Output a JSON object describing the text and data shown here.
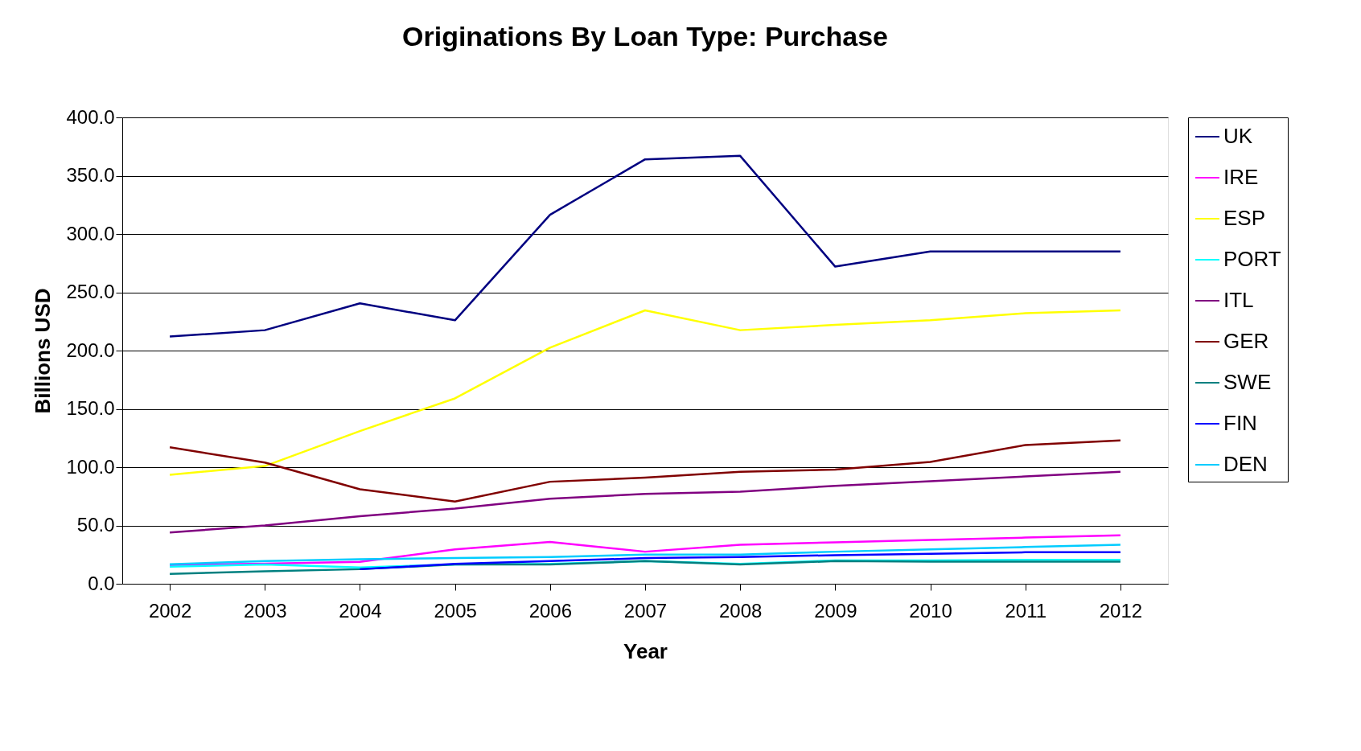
{
  "chart_data": {
    "type": "line",
    "title": "Originations By Loan Type: Purchase",
    "xlabel": "Year",
    "ylabel": "Billions USD",
    "categories": [
      "2002",
      "2003",
      "2004",
      "2005",
      "2006",
      "2007",
      "2008",
      "2009",
      "2010",
      "2011",
      "2012"
    ],
    "ylim": [
      0,
      400
    ],
    "yticks": [
      {
        "value": 0,
        "label": "0.0"
      },
      {
        "value": 50,
        "label": "50.0"
      },
      {
        "value": 100,
        "label": "100.0"
      },
      {
        "value": 150,
        "label": "150.0"
      },
      {
        "value": 200,
        "label": "200.0"
      },
      {
        "value": 250,
        "label": "250.0"
      },
      {
        "value": 300,
        "label": "300.0"
      },
      {
        "value": 350,
        "label": "350.0"
      },
      {
        "value": 400,
        "label": "400.0"
      }
    ],
    "grid": "y",
    "legend": "right",
    "marker": "none",
    "line_style": "solid",
    "series": [
      {
        "name": "UK",
        "color": "#000080",
        "values": [
          212,
          217.5,
          240.5,
          226,
          316.5,
          364,
          367,
          272,
          285,
          285,
          285
        ]
      },
      {
        "name": "IRE",
        "color": "#ff00ff",
        "values": [
          16,
          17.3,
          18.8,
          29.5,
          35.8,
          27.5,
          33.5,
          35.5,
          37.6,
          39.6,
          41.6
        ]
      },
      {
        "name": "ESP",
        "color": "#ffff00",
        "values": [
          93.5,
          101,
          131,
          159,
          202.5,
          234.5,
          217.5,
          222,
          226,
          232,
          234.5
        ]
      },
      {
        "name": "PORT",
        "color": "#00ffff",
        "values": [
          14.7,
          16.5,
          14,
          16.5,
          17,
          19.4,
          17,
          20,
          20,
          20.5,
          20.5
        ]
      },
      {
        "name": "ITL",
        "color": "#800080",
        "values": [
          44,
          50,
          58,
          64.5,
          73,
          77,
          79,
          84,
          88,
          92,
          96
        ]
      },
      {
        "name": "GER",
        "color": "#800000",
        "values": [
          117,
          104,
          81,
          70.5,
          87.5,
          91,
          96,
          98,
          104.5,
          119,
          123
        ]
      },
      {
        "name": "SWE",
        "color": "#008080",
        "values": [
          8.4,
          10.7,
          12.5,
          16.5,
          16.5,
          19.4,
          16.5,
          19.4,
          19,
          19,
          19
        ]
      },
      {
        "name": "FIN",
        "color": "#0000ff",
        "values": [
          null,
          null,
          12.5,
          17,
          19.4,
          22,
          23,
          24.5,
          25.7,
          27,
          27
        ]
      },
      {
        "name": "DEN",
        "color": "#00ccff",
        "values": [
          16.8,
          19.4,
          21,
          22,
          23,
          25,
          25,
          27.5,
          29.5,
          31.5,
          33.5
        ]
      }
    ]
  }
}
